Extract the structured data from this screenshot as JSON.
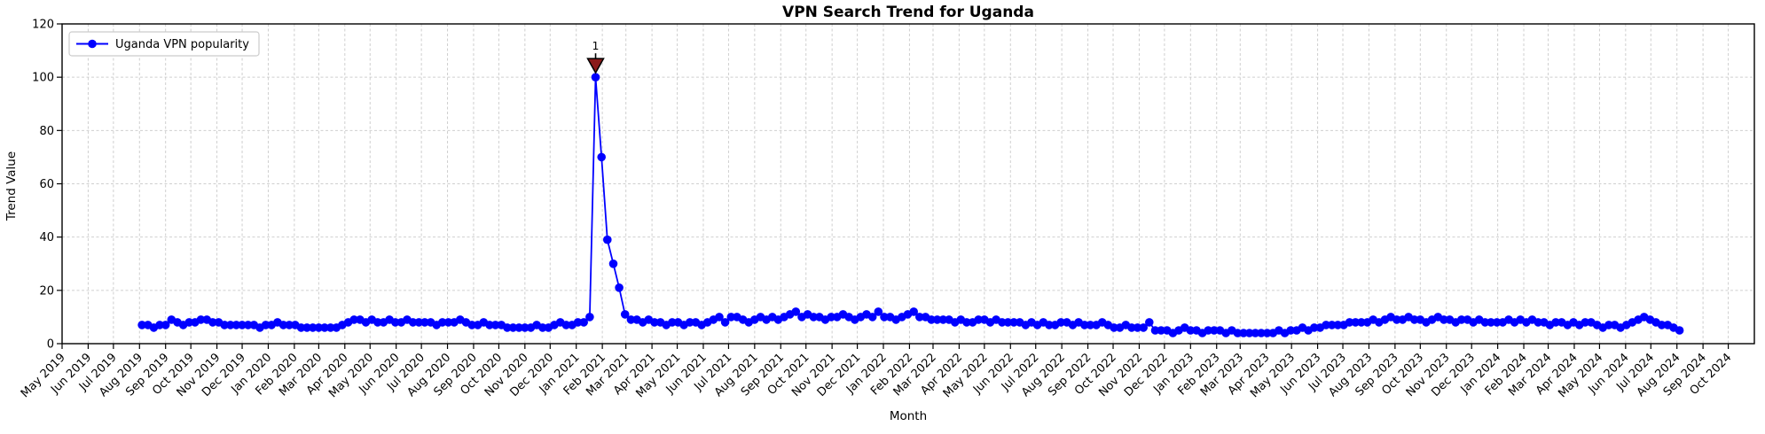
{
  "figure": {
    "title": "VPN Search Trend for Uganda",
    "xlabel": "Month",
    "ylabel": "Trend Value",
    "legend": {
      "label": "Uganda VPN popularity"
    },
    "annotation": {
      "label": "1"
    }
  },
  "chart_data": {
    "type": "line",
    "title": "VPN Search Trend for Uganda",
    "xlabel": "Month",
    "ylabel": "Trend Value",
    "grid": true,
    "legend_position": "upper left",
    "y_axis": {
      "min": 0,
      "max": 120,
      "ticks": [
        0,
        20,
        40,
        60,
        80,
        100,
        120
      ]
    },
    "x_axis": {
      "start": "2019-05-01",
      "end": "2024-11-01",
      "tick_rotation_deg": 45,
      "tick_labels": [
        "May 2019",
        "Jun 2019",
        "Jul 2019",
        "Aug 2019",
        "Sep 2019",
        "Oct 2019",
        "Nov 2019",
        "Dec 2019",
        "Jan 2020",
        "Feb 2020",
        "Mar 2020",
        "Apr 2020",
        "May 2020",
        "Jun 2020",
        "Jul 2020",
        "Aug 2020",
        "Sep 2020",
        "Oct 2020",
        "Nov 2020",
        "Dec 2020",
        "Jan 2021",
        "Feb 2021",
        "Mar 2021",
        "Apr 2021",
        "May 2021",
        "Jun 2021",
        "Jul 2021",
        "Aug 2021",
        "Sep 2021",
        "Oct 2021",
        "Nov 2021",
        "Dec 2021",
        "Jan 2022",
        "Feb 2022",
        "Mar 2022",
        "Apr 2022",
        "May 2022",
        "Jun 2022",
        "Jul 2022",
        "Aug 2022",
        "Sep 2022",
        "Oct 2022",
        "Nov 2022",
        "Dec 2022",
        "Jan 2023",
        "Feb 2023",
        "Mar 2023",
        "Apr 2023",
        "May 2023",
        "Jun 2023",
        "Jul 2023",
        "Aug 2023",
        "Sep 2023",
        "Oct 2023",
        "Nov 2023",
        "Dec 2023",
        "Jan 2024",
        "Feb 2024",
        "Mar 2024",
        "Apr 2024",
        "May 2024",
        "Jun 2024",
        "Jul 2024",
        "Aug 2024",
        "Sep 2024",
        "Oct 2024"
      ]
    },
    "series": [
      {
        "name": "Uganda VPN popularity",
        "start_date": "2019-08-04",
        "interval_days": 7,
        "values": [
          7,
          7,
          6,
          7,
          7,
          9,
          8,
          7,
          8,
          8,
          9,
          9,
          8,
          8,
          7,
          7,
          7,
          7,
          7,
          7,
          6,
          7,
          7,
          8,
          7,
          7,
          7,
          6,
          6,
          6,
          6,
          6,
          6,
          6,
          7,
          8,
          9,
          9,
          8,
          9,
          8,
          8,
          9,
          8,
          8,
          9,
          8,
          8,
          8,
          8,
          7,
          8,
          8,
          8,
          9,
          8,
          7,
          7,
          8,
          7,
          7,
          7,
          6,
          6,
          6,
          6,
          6,
          7,
          6,
          6,
          7,
          8,
          7,
          7,
          8,
          8,
          10,
          100,
          70,
          39,
          30,
          21,
          11,
          9,
          9,
          8,
          9,
          8,
          8,
          7,
          8,
          8,
          7,
          8,
          8,
          7,
          8,
          9,
          10,
          8,
          10,
          10,
          9,
          8,
          9,
          10,
          9,
          10,
          9,
          10,
          11,
          12,
          10,
          11,
          10,
          10,
          9,
          10,
          10,
          11,
          10,
          9,
          10,
          11,
          10,
          12,
          10,
          10,
          9,
          10,
          11,
          12,
          10,
          10,
          9,
          9,
          9,
          9,
          8,
          9,
          8,
          8,
          9,
          9,
          8,
          9,
          8,
          8,
          8,
          8,
          7,
          8,
          7,
          8,
          7,
          7,
          8,
          8,
          7,
          8,
          7,
          7,
          7,
          8,
          7,
          6,
          6,
          7,
          6,
          6,
          6,
          8,
          5,
          5,
          5,
          4,
          5,
          6,
          5,
          5,
          4,
          5,
          5,
          5,
          4,
          5,
          4,
          4,
          4,
          4,
          4,
          4,
          4,
          5,
          4,
          5,
          5,
          6,
          5,
          6,
          6,
          7,
          7,
          7,
          7,
          8,
          8,
          8,
          8,
          9,
          8,
          9,
          10,
          9,
          9,
          10,
          9,
          9,
          8,
          9,
          10,
          9,
          9,
          8,
          9,
          9,
          8,
          9,
          8,
          8,
          8,
          8,
          9,
          8,
          9,
          8,
          9,
          8,
          8,
          7,
          8,
          8,
          7,
          8,
          7,
          8,
          8,
          7,
          6,
          7,
          7,
          6,
          7,
          8,
          9,
          10,
          9,
          8,
          7,
          7,
          6,
          5
        ]
      }
    ],
    "annotations": [
      {
        "label": "1",
        "date": "2021-01-24",
        "value": 100,
        "marker": "triangle-down"
      }
    ],
    "colors": {
      "line": "#0000ff",
      "marker": "#0000ff",
      "annotation_text": "#8b0000",
      "annotation_marker_fill": "#8b1a1a",
      "annotation_marker_edge": "#000000",
      "grid": "#cfcfcf",
      "spine": "#000000",
      "legend_border": "#cccccc"
    }
  }
}
